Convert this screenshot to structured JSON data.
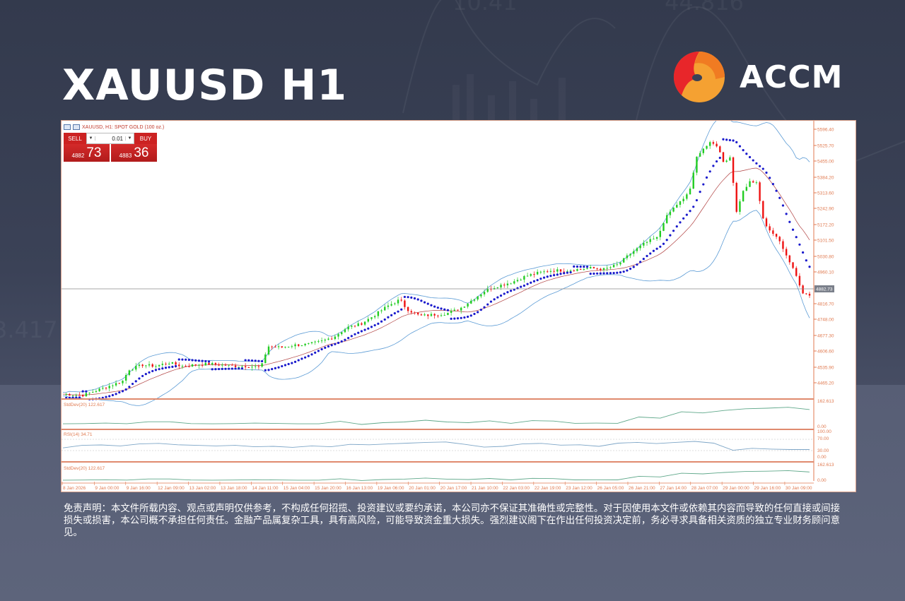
{
  "page": {
    "title": "XAUUSD H1",
    "brand": {
      "name": "ACCM",
      "colors": {
        "red": "#e8262a",
        "orange": "#f07b22",
        "amber": "#f5a132"
      }
    },
    "disclaimer": "免责声明：本文件所载内容、观点或声明仅供参考，不构成任何招揽、投资建议或要约承诺，本公司亦不保证其准确性或完整性。对于因使用本文件或依赖其内容而导致的任何直接或间接损失或损害，本公司概不承担任何责任。金融产品属复杂工具，具有高风险，可能导致资金重大损失。强烈建议阁下在作出任何投资决定前，务必寻求具备相关资质的独立专业财务顾问意见。"
  },
  "terminal": {
    "header": "XAUUSD, H1:  SPOT GOLD (100 oz.)",
    "trade_panel": {
      "sell_label": "SELL",
      "buy_label": "BUY",
      "lot_size": "0.01",
      "sell_price_prefix": "4882",
      "sell_price_big": "73",
      "buy_price_prefix": "4883",
      "buy_price_big": "36"
    },
    "current_price_label": "4882.73",
    "indicators": {
      "stddev_top": "StdDev(20) 122.617",
      "rsi": "RSI(14) 34.71",
      "stddev_bottom": "StdDev(20) 122.617"
    },
    "indicator_scales": {
      "stddev_max": "162.613",
      "stddev_min": "0.00",
      "rsi_levels": [
        "100.00",
        "70.00",
        "30.00",
        "0.00"
      ]
    },
    "colors": {
      "bull": "#22cc22",
      "bear": "#ee1111",
      "sar": "#1a1acc",
      "bands": "#5b9bd5",
      "ma": "#b04040",
      "axis": "#e07a50",
      "indicator_line": "#5fa88a",
      "rsi_line": "#7ea6c7"
    }
  },
  "chart_data": {
    "type": "candlestick",
    "title": "XAUUSD, H1: SPOT GOLD (100 oz.)",
    "symbol": "XAUUSD",
    "timeframe": "H1",
    "ylim": [
      4440,
      5620
    ],
    "y_ticks": [
      "5596.40",
      "5525.70",
      "5455.00",
      "5384.20",
      "5313.60",
      "5242.90",
      "5172.20",
      "5101.50",
      "5030.80",
      "4960.10",
      "4816.70",
      "4748.00",
      "4677.30",
      "4606.60",
      "4535.90",
      "4465.20"
    ],
    "y_tick_values": [
      5596.4,
      5525.7,
      5455.0,
      5384.2,
      5313.6,
      5242.9,
      5172.2,
      5101.5,
      5030.8,
      4960.1,
      4816.7,
      4748.0,
      4677.3,
      4606.6,
      4535.9,
      4465.2
    ],
    "x_ticks": [
      "8 Jan 2026",
      "9 Jan 00:00",
      "9 Jan 16:00",
      "12 Jan 09:00",
      "13 Jan 02:00",
      "13 Jan 18:00",
      "14 Jan 11:00",
      "15 Jan 04:00",
      "15 Jan 20:00",
      "16 Jan 13:00",
      "19 Jan 06:00",
      "20 Jan 01:00",
      "20 Jan 17:00",
      "21 Jan 10:00",
      "22 Jan 03:00",
      "22 Jan 19:00",
      "23 Jan 12:00",
      "26 Jan 05:00",
      "26 Jan 21:00",
      "27 Jan 14:00",
      "28 Jan 07:00",
      "29 Jan 00:00",
      "29 Jan 16:00",
      "30 Jan 09:00"
    ],
    "current_price": 4882.73,
    "close_path": [
      [
        0,
        4455
      ],
      [
        3,
        4450
      ],
      [
        5,
        4470
      ],
      [
        7,
        4490
      ],
      [
        9,
        4510
      ],
      [
        10,
        4560
      ],
      [
        12,
        4580
      ],
      [
        14,
        4575
      ],
      [
        16,
        4590
      ],
      [
        18,
        4575
      ],
      [
        20,
        4580
      ],
      [
        22,
        4585
      ],
      [
        24,
        4580
      ],
      [
        26,
        4575
      ],
      [
        28,
        4575
      ],
      [
        30,
        4570
      ],
      [
        31,
        4660
      ],
      [
        33,
        4655
      ],
      [
        35,
        4665
      ],
      [
        37,
        4668
      ],
      [
        39,
        4680
      ],
      [
        41,
        4700
      ],
      [
        43,
        4740
      ],
      [
        45,
        4755
      ],
      [
        47,
        4790
      ],
      [
        49,
        4830
      ],
      [
        51,
        4860
      ],
      [
        52,
        4820
      ],
      [
        54,
        4790
      ],
      [
        56,
        4795
      ],
      [
        58,
        4800
      ],
      [
        60,
        4820
      ],
      [
        62,
        4860
      ],
      [
        64,
        4900
      ],
      [
        66,
        4920
      ],
      [
        68,
        4935
      ],
      [
        70,
        4960
      ],
      [
        72,
        4975
      ],
      [
        74,
        4985
      ],
      [
        76,
        4985
      ],
      [
        78,
        4990
      ],
      [
        80,
        4995
      ],
      [
        82,
        4990
      ],
      [
        84,
        5010
      ],
      [
        86,
        5060
      ],
      [
        88,
        5100
      ],
      [
        89,
        5115
      ],
      [
        90,
        5125
      ],
      [
        91,
        5200
      ],
      [
        92,
        5240
      ],
      [
        93,
        5270
      ],
      [
        94,
        5290
      ],
      [
        95,
        5340
      ],
      [
        96,
        5480
      ],
      [
        97,
        5510
      ],
      [
        98,
        5530
      ],
      [
        99,
        5520
      ],
      [
        100,
        5450
      ],
      [
        101,
        5470
      ],
      [
        102,
        5230
      ],
      [
        103,
        5330
      ],
      [
        104,
        5370
      ],
      [
        105,
        5360
      ],
      [
        106,
        5200
      ],
      [
        107,
        5150
      ],
      [
        108,
        5130
      ],
      [
        109,
        5080
      ],
      [
        110,
        5020
      ],
      [
        111,
        4960
      ],
      [
        112,
        4890
      ],
      [
        113,
        4880
      ]
    ],
    "indicators": [
      {
        "name": "Bollinger Bands",
        "color": "#5b9bd5"
      },
      {
        "name": "Moving Average",
        "color": "#b04040"
      },
      {
        "name": "Parabolic SAR",
        "color": "#1a1acc"
      },
      {
        "name": "StdDev(20)",
        "value": 122.617,
        "range": [
          0,
          162.613
        ]
      },
      {
        "name": "RSI(14)",
        "value": 34.71,
        "levels": [
          70,
          30
        ],
        "range": [
          0,
          100
        ]
      }
    ],
    "stddev_profile": [
      12,
      14,
      18,
      13,
      30,
      30,
      14,
      12,
      14,
      18,
      15,
      12,
      12,
      34,
      6,
      22,
      28,
      44,
      28,
      22,
      38,
      16,
      40,
      36,
      16,
      18,
      16,
      72,
      62,
      118,
      108,
      130,
      145,
      150,
      158,
      138
    ],
    "rsi_profile": [
      42,
      55,
      57,
      52,
      62,
      65,
      58,
      55,
      52,
      55,
      48,
      50,
      45,
      52,
      48,
      60,
      58,
      62,
      66,
      70,
      72,
      60,
      46,
      50,
      62,
      65,
      56,
      58,
      50,
      66,
      70,
      64,
      70,
      75,
      66,
      30,
      40,
      36,
      34,
      34
    ]
  }
}
